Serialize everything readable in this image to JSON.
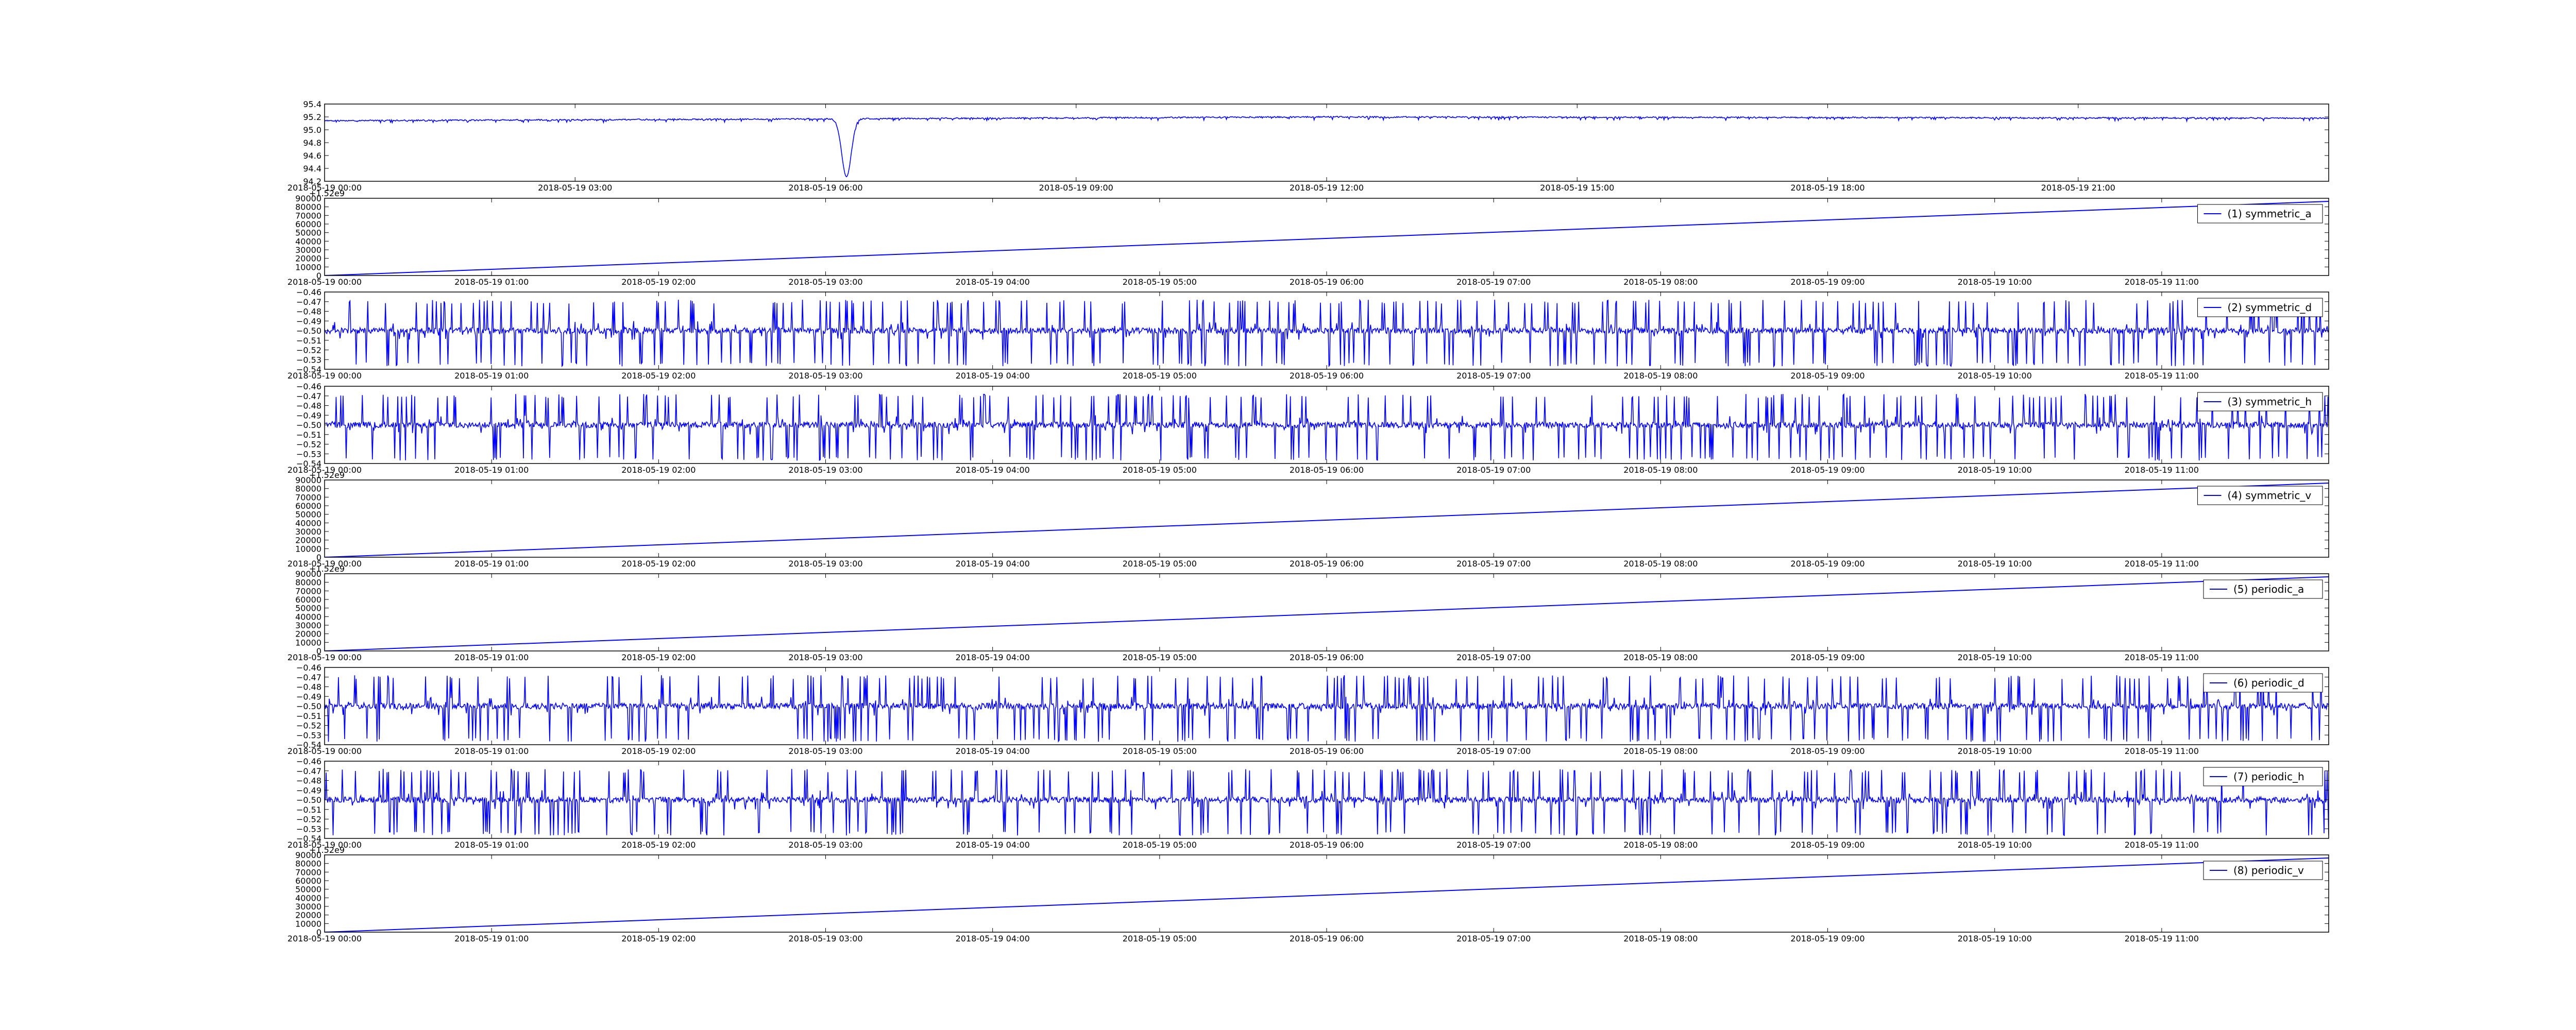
{
  "colors": {
    "line": "#0000ff",
    "axes": "#000000",
    "background": "#ffffff"
  },
  "chart_data": [
    {
      "type": "line",
      "legend": "",
      "y_ticks": [
        "95.4",
        "95.2",
        "95.0",
        "94.8",
        "94.6",
        "94.4",
        "94.2"
      ],
      "ylim": [
        94.2,
        95.4
      ],
      "x_ticks": [
        "2018-05-19 00:00",
        "2018-05-19 03:00",
        "2018-05-19 06:00",
        "2018-05-19 09:00",
        "2018-05-19 12:00",
        "2018-05-19 15:00",
        "2018-05-19 18:00",
        "2018-05-19 21:00"
      ],
      "x_range_hours": [
        0,
        24
      ],
      "pattern": "flat-noisy",
      "baseline": 95.16,
      "trend": [
        [
          0,
          95.14
        ],
        [
          12,
          95.2
        ],
        [
          24,
          95.18
        ]
      ],
      "dip": {
        "hour": 6.25,
        "value": 94.27
      }
    },
    {
      "type": "line",
      "legend": "(1) symmetric_a",
      "offset": "+1.52e9",
      "y_ticks": [
        "90000",
        "80000",
        "70000",
        "60000",
        "50000",
        "40000",
        "30000",
        "20000",
        "10000",
        "0"
      ],
      "ylim": [
        0,
        90000
      ],
      "x_ticks": [
        "2018-05-19 00:00",
        "2018-05-19 01:00",
        "2018-05-19 02:00",
        "2018-05-19 03:00",
        "2018-05-19 04:00",
        "2018-05-19 05:00",
        "2018-05-19 06:00",
        "2018-05-19 07:00",
        "2018-05-19 08:00",
        "2018-05-19 09:00",
        "2018-05-19 10:00",
        "2018-05-19 11:00"
      ],
      "x_range_hours": [
        0,
        12
      ],
      "pattern": "linear",
      "start": 0,
      "end": 86400
    },
    {
      "type": "line",
      "legend": "(2) symmetric_d",
      "y_ticks": [
        "−0.46",
        "−0.47",
        "−0.48",
        "−0.49",
        "−0.50",
        "−0.51",
        "−0.52",
        "−0.53",
        "−0.54"
      ],
      "ylim": [
        -0.54,
        -0.46
      ],
      "x_ticks": [
        "2018-05-19 00:00",
        "2018-05-19 01:00",
        "2018-05-19 02:00",
        "2018-05-19 03:00",
        "2018-05-19 04:00",
        "2018-05-19 05:00",
        "2018-05-19 06:00",
        "2018-05-19 07:00",
        "2018-05-19 08:00",
        "2018-05-19 09:00",
        "2018-05-19 10:00",
        "2018-05-19 11:00"
      ],
      "x_range_hours": [
        0,
        12
      ],
      "pattern": "spiky",
      "baseline": -0.5,
      "spike_high": -0.47,
      "spike_low": -0.535
    },
    {
      "type": "line",
      "legend": "(3) symmetric_h",
      "y_ticks": [
        "−0.46",
        "−0.47",
        "−0.48",
        "−0.49",
        "−0.50",
        "−0.51",
        "−0.52",
        "−0.53",
        "−0.54"
      ],
      "ylim": [
        -0.54,
        -0.46
      ],
      "x_ticks": [
        "2018-05-19 00:00",
        "2018-05-19 01:00",
        "2018-05-19 02:00",
        "2018-05-19 03:00",
        "2018-05-19 04:00",
        "2018-05-19 05:00",
        "2018-05-19 06:00",
        "2018-05-19 07:00",
        "2018-05-19 08:00",
        "2018-05-19 09:00",
        "2018-05-19 10:00",
        "2018-05-19 11:00"
      ],
      "x_range_hours": [
        0,
        12
      ],
      "pattern": "spiky",
      "baseline": -0.5,
      "spike_high": -0.47,
      "spike_low": -0.535
    },
    {
      "type": "line",
      "legend": "(4) symmetric_v",
      "offset": "+1.52e9",
      "y_ticks": [
        "90000",
        "80000",
        "70000",
        "60000",
        "50000",
        "40000",
        "30000",
        "20000",
        "10000",
        "0"
      ],
      "ylim": [
        0,
        90000
      ],
      "x_ticks": [
        "2018-05-19 00:00",
        "2018-05-19 01:00",
        "2018-05-19 02:00",
        "2018-05-19 03:00",
        "2018-05-19 04:00",
        "2018-05-19 05:00",
        "2018-05-19 06:00",
        "2018-05-19 07:00",
        "2018-05-19 08:00",
        "2018-05-19 09:00",
        "2018-05-19 10:00",
        "2018-05-19 11:00"
      ],
      "x_range_hours": [
        0,
        12
      ],
      "pattern": "linear",
      "start": 0,
      "end": 86400
    },
    {
      "type": "line",
      "legend": "(5) periodic_a",
      "offset": "+1.52e9",
      "y_ticks": [
        "90000",
        "80000",
        "70000",
        "60000",
        "50000",
        "40000",
        "30000",
        "20000",
        "10000",
        "0"
      ],
      "ylim": [
        0,
        90000
      ],
      "x_ticks": [
        "2018-05-19 00:00",
        "2018-05-19 01:00",
        "2018-05-19 02:00",
        "2018-05-19 03:00",
        "2018-05-19 04:00",
        "2018-05-19 05:00",
        "2018-05-19 06:00",
        "2018-05-19 07:00",
        "2018-05-19 08:00",
        "2018-05-19 09:00",
        "2018-05-19 10:00",
        "2018-05-19 11:00"
      ],
      "x_range_hours": [
        0,
        12
      ],
      "pattern": "linear",
      "start": 0,
      "end": 86400
    },
    {
      "type": "line",
      "legend": "(6) periodic_d",
      "y_ticks": [
        "−0.46",
        "−0.47",
        "−0.48",
        "−0.49",
        "−0.50",
        "−0.51",
        "−0.52",
        "−0.53",
        "−0.54"
      ],
      "ylim": [
        -0.54,
        -0.46
      ],
      "x_ticks": [
        "2018-05-19 00:00",
        "2018-05-19 01:00",
        "2018-05-19 02:00",
        "2018-05-19 03:00",
        "2018-05-19 04:00",
        "2018-05-19 05:00",
        "2018-05-19 06:00",
        "2018-05-19 07:00",
        "2018-05-19 08:00",
        "2018-05-19 09:00",
        "2018-05-19 10:00",
        "2018-05-19 11:00"
      ],
      "x_range_hours": [
        0,
        12
      ],
      "pattern": "spiky",
      "baseline": -0.5,
      "spike_high": -0.47,
      "spike_low": -0.535
    },
    {
      "type": "line",
      "legend": "(7) periodic_h",
      "y_ticks": [
        "−0.46",
        "−0.47",
        "−0.48",
        "−0.49",
        "−0.50",
        "−0.51",
        "−0.52",
        "−0.53",
        "−0.54"
      ],
      "ylim": [
        -0.54,
        -0.46
      ],
      "x_ticks": [
        "2018-05-19 00:00",
        "2018-05-19 01:00",
        "2018-05-19 02:00",
        "2018-05-19 03:00",
        "2018-05-19 04:00",
        "2018-05-19 05:00",
        "2018-05-19 06:00",
        "2018-05-19 07:00",
        "2018-05-19 08:00",
        "2018-05-19 09:00",
        "2018-05-19 10:00",
        "2018-05-19 11:00"
      ],
      "x_range_hours": [
        0,
        12
      ],
      "pattern": "spiky",
      "baseline": -0.5,
      "spike_high": -0.47,
      "spike_low": -0.535
    },
    {
      "type": "line",
      "legend": "(8) periodic_v",
      "offset": "+1.52e9",
      "y_ticks": [
        "90000",
        "80000",
        "70000",
        "60000",
        "50000",
        "40000",
        "30000",
        "20000",
        "10000",
        "0"
      ],
      "ylim": [
        0,
        90000
      ],
      "x_ticks": [
        "2018-05-19 00:00",
        "2018-05-19 01:00",
        "2018-05-19 02:00",
        "2018-05-19 03:00",
        "2018-05-19 04:00",
        "2018-05-19 05:00",
        "2018-05-19 06:00",
        "2018-05-19 07:00",
        "2018-05-19 08:00",
        "2018-05-19 09:00",
        "2018-05-19 10:00",
        "2018-05-19 11:00"
      ],
      "x_range_hours": [
        0,
        12
      ],
      "pattern": "linear",
      "start": 0,
      "end": 86400
    }
  ]
}
